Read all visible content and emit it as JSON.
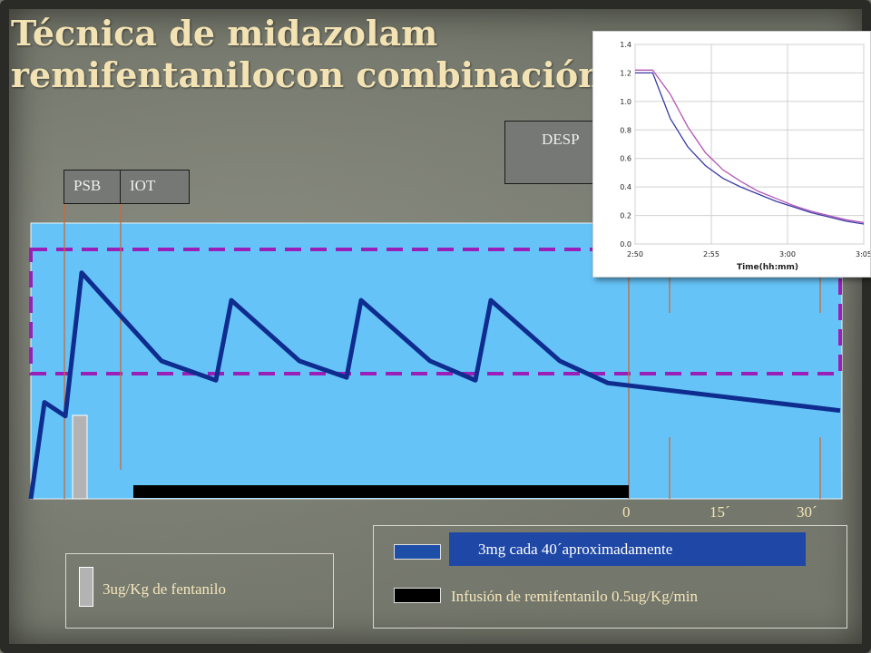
{
  "slide": {
    "title_line1": "Técnica de midazolam",
    "title_line2": "remifentanilocon combinación"
  },
  "labels": {
    "psb": "PSB",
    "iot": "IOT",
    "desp": "DESP"
  },
  "time_axis": {
    "ticks": [
      "0",
      "15´",
      "30´"
    ]
  },
  "legend_left": {
    "fentanyl": "3ug/Kg de fentanilo"
  },
  "legend_right": {
    "midazolam": "3mg cada 40´aproximadamente",
    "remifentanil": "Infusión de remifentanilo 0.5ug/Kg/min"
  },
  "colors": {
    "accent_title": "#f3e3b4",
    "concentration_line": "#0f2c8f",
    "therapeutic_band": "#9a1fb8",
    "plot_background": "#66c3f7",
    "remifentanil_infusion": "#000000",
    "fentanyl_bolus": "#b3b3b3",
    "midazolam_swatch": "#1e4fa8"
  },
  "chart_data": {
    "type": "line",
    "series": [
      {
        "values": [
          0.0,
          0.35,
          0.3,
          0.82,
          0.5,
          0.43,
          0.72,
          0.5,
          0.44,
          0.72,
          0.5,
          0.43,
          0.72,
          0.5,
          0.42,
          0.32
        ]
      }
    ]
  },
  "inset_chart": {
    "type": "line",
    "yticks": [
      "0.0",
      "0.2",
      "0.4",
      "0.6",
      "0.8",
      "1.0",
      "1.2",
      "1.4"
    ],
    "xticks": [
      "2:50",
      "2:55",
      "3:00",
      "3:05"
    ],
    "xlabel": "Time(hh:mm)",
    "ylim": [
      0,
      1.4
    ],
    "series": [
      {
        "color": "#b455b4",
        "values": [
          1.22,
          1.22,
          1.05,
          0.82,
          0.64,
          0.52,
          0.44,
          0.37,
          0.32,
          0.27,
          0.23,
          0.2,
          0.17,
          0.15
        ]
      },
      {
        "color": "#3a3aa8",
        "values": [
          1.2,
          1.2,
          0.88,
          0.68,
          0.55,
          0.46,
          0.4,
          0.35,
          0.3,
          0.26,
          0.22,
          0.19,
          0.16,
          0.14
        ]
      }
    ]
  }
}
